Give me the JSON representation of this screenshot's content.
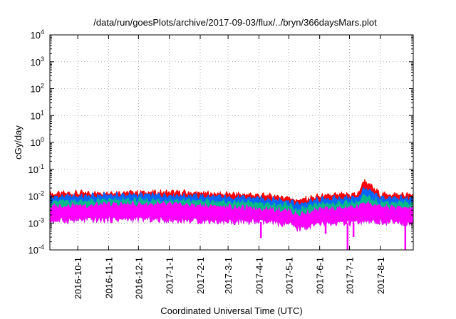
{
  "chart_data": {
    "type": "area",
    "title": "/data/run/goesPlots/archive/2017-09-03/flux/../bryn/366daysMars.plot",
    "xlabel": "Coordinated Universal Time (UTC)",
    "ylabel": "cGy/day",
    "yscale": "log",
    "ylim": [
      0.0001,
      10000
    ],
    "xlim": [
      "2016-09-03",
      "2017-09-03"
    ],
    "grid": true,
    "y_ticks": [
      {
        "base": "10",
        "exp": "-4",
        "value": 0.0001
      },
      {
        "base": "10",
        "exp": "-3",
        "value": 0.001
      },
      {
        "base": "10",
        "exp": "-2",
        "value": 0.01
      },
      {
        "base": "10",
        "exp": "-1",
        "value": 0.1
      },
      {
        "base": "10",
        "exp": "0",
        "value": 1
      },
      {
        "base": "10",
        "exp": "1",
        "value": 10
      },
      {
        "base": "10",
        "exp": "2",
        "value": 100
      },
      {
        "base": "10",
        "exp": "3",
        "value": 1000
      },
      {
        "base": "10",
        "exp": "4",
        "value": 10000
      }
    ],
    "x_ticks": [
      {
        "label": "2016-10-1",
        "date": "2016-10-01"
      },
      {
        "label": "2016-11-1",
        "date": "2016-11-01"
      },
      {
        "label": "2016-12-1",
        "date": "2016-12-01"
      },
      {
        "label": "2017-1-1",
        "date": "2017-01-01"
      },
      {
        "label": "2017-2-1",
        "date": "2017-02-01"
      },
      {
        "label": "2017-3-1",
        "date": "2017-03-01"
      },
      {
        "label": "2017-4-1",
        "date": "2017-04-01"
      },
      {
        "label": "2017-5-1",
        "date": "2017-05-01"
      },
      {
        "label": "2017-6-1",
        "date": "2017-06-01"
      },
      {
        "label": "2017-7-1",
        "date": "2017-07-01"
      },
      {
        "label": "2017-8-1",
        "date": "2017-08-01"
      }
    ],
    "series": [
      {
        "color": "#ff0000",
        "dates": [
          "2016-09-03",
          "2016-09-20",
          "2016-10-10",
          "2016-11-01",
          "2016-12-01",
          "2017-01-01",
          "2017-02-01",
          "2017-03-01",
          "2017-04-01",
          "2017-05-01",
          "2017-05-10",
          "2017-06-01",
          "2017-06-20",
          "2017-07-10",
          "2017-07-15",
          "2017-08-01",
          "2017-09-03"
        ],
        "values": [
          0.012,
          0.013,
          0.013,
          0.014,
          0.014,
          0.014,
          0.013,
          0.012,
          0.011,
          0.009,
          0.007,
          0.01,
          0.011,
          0.012,
          0.04,
          0.012,
          0.011
        ]
      },
      {
        "color": "#0066ff",
        "dates": [
          "2016-09-03",
          "2016-09-20",
          "2016-10-10",
          "2016-11-01",
          "2016-12-01",
          "2017-01-01",
          "2017-02-01",
          "2017-03-01",
          "2017-04-01",
          "2017-05-01",
          "2017-05-10",
          "2017-06-01",
          "2017-06-20",
          "2017-07-10",
          "2017-07-15",
          "2017-08-01",
          "2017-09-03"
        ],
        "values": [
          0.009,
          0.01,
          0.01,
          0.011,
          0.011,
          0.011,
          0.01,
          0.009,
          0.0085,
          0.007,
          0.005,
          0.0075,
          0.0085,
          0.009,
          0.02,
          0.009,
          0.008
        ]
      },
      {
        "color": "#00bb88",
        "dates": [
          "2016-09-03",
          "2016-09-20",
          "2016-10-10",
          "2016-11-01",
          "2016-12-01",
          "2017-01-01",
          "2017-02-01",
          "2017-03-01",
          "2017-04-01",
          "2017-05-01",
          "2017-05-10",
          "2017-06-01",
          "2017-06-20",
          "2017-07-10",
          "2017-07-15",
          "2017-08-01",
          "2017-09-03"
        ],
        "values": [
          0.006,
          0.0065,
          0.0065,
          0.007,
          0.007,
          0.007,
          0.0065,
          0.006,
          0.0055,
          0.0045,
          0.003,
          0.005,
          0.0055,
          0.006,
          0.01,
          0.006,
          0.0055
        ]
      },
      {
        "color": "#ff00ff",
        "dates": [
          "2016-09-03",
          "2016-09-20",
          "2016-10-10",
          "2016-11-01",
          "2016-12-01",
          "2017-01-01",
          "2017-02-01",
          "2017-03-01",
          "2017-04-01",
          "2017-05-01",
          "2017-05-10",
          "2017-06-01",
          "2017-06-20",
          "2017-07-10",
          "2017-07-15",
          "2017-08-01",
          "2017-09-03"
        ],
        "values": [
          0.004,
          0.0045,
          0.0045,
          0.005,
          0.005,
          0.005,
          0.0045,
          0.004,
          0.0035,
          0.003,
          0.002,
          0.0032,
          0.0035,
          0.004,
          0.006,
          0.004,
          0.0035
        ]
      }
    ],
    "lower_bound": {
      "dates": [
        "2016-09-03",
        "2016-10-10",
        "2016-12-01",
        "2017-02-01",
        "2017-04-01",
        "2017-05-01",
        "2017-05-10",
        "2017-06-01",
        "2017-07-01",
        "2017-08-01",
        "2017-09-03"
      ],
      "values": [
        0.0012,
        0.0013,
        0.0014,
        0.0012,
        0.0011,
        0.0009,
        0.0006,
        0.0009,
        0.001,
        0.0011,
        0.001
      ]
    },
    "dips": [
      {
        "date": "2017-04-03",
        "value": 0.00028
      },
      {
        "date": "2017-06-07",
        "value": 0.0004
      },
      {
        "date": "2017-06-29",
        "value": 0.0001
      },
      {
        "date": "2017-07-05",
        "value": 0.0003
      },
      {
        "date": "2017-08-26",
        "value": 0.0001
      }
    ]
  }
}
